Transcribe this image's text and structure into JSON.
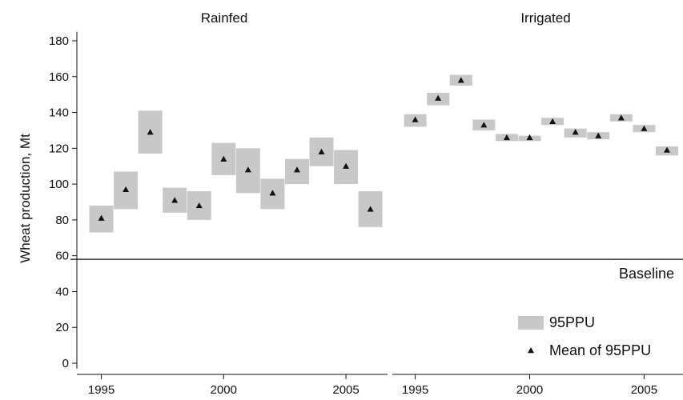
{
  "chart_data": {
    "type": "scatter",
    "ylabel": "Wheat production, Mt",
    "ylim": [
      -3,
      185
    ],
    "yticks": [
      0,
      20,
      40,
      60,
      80,
      100,
      120,
      140,
      160,
      180
    ],
    "xticks": [
      1995,
      2000,
      2005
    ],
    "baseline": {
      "label": "Baseline",
      "value": 58
    },
    "legend": {
      "band_label": "95PPU",
      "mean_label": "Mean of 95PPU",
      "position": "bottom-right"
    },
    "colors": {
      "band": "#c8c8c8",
      "marker": "#111111",
      "axis": "#111111"
    },
    "panels": [
      {
        "title": "Rainfed",
        "xlim": [
          1994,
          2006.7
        ],
        "points": [
          {
            "year": 1995,
            "mean": 81,
            "low": 73,
            "high": 88
          },
          {
            "year": 1996,
            "mean": 97,
            "low": 86,
            "high": 107
          },
          {
            "year": 1997,
            "mean": 129,
            "low": 117,
            "high": 141
          },
          {
            "year": 1998,
            "mean": 91,
            "low": 84,
            "high": 98
          },
          {
            "year": 1999,
            "mean": 88,
            "low": 80,
            "high": 96
          },
          {
            "year": 2000,
            "mean": 114,
            "low": 105,
            "high": 123
          },
          {
            "year": 2001,
            "mean": 108,
            "low": 95,
            "high": 120
          },
          {
            "year": 2002,
            "mean": 95,
            "low": 86,
            "high": 103
          },
          {
            "year": 2003,
            "mean": 108,
            "low": 100,
            "high": 114
          },
          {
            "year": 2004,
            "mean": 118,
            "low": 110,
            "high": 126
          },
          {
            "year": 2005,
            "mean": 110,
            "low": 100,
            "high": 119
          },
          {
            "year": 2006,
            "mean": 86,
            "low": 76,
            "high": 96
          }
        ]
      },
      {
        "title": "Irrigated",
        "xlim": [
          1994,
          2006.7
        ],
        "points": [
          {
            "year": 1995,
            "mean": 136,
            "low": 132,
            "high": 139
          },
          {
            "year": 1996,
            "mean": 148,
            "low": 144,
            "high": 151
          },
          {
            "year": 1997,
            "mean": 158,
            "low": 155,
            "high": 161
          },
          {
            "year": 1998,
            "mean": 133,
            "low": 130,
            "high": 136
          },
          {
            "year": 1999,
            "mean": 126,
            "low": 124,
            "high": 128
          },
          {
            "year": 2000,
            "mean": 126,
            "low": 124,
            "high": 127
          },
          {
            "year": 2001,
            "mean": 135,
            "low": 133,
            "high": 137
          },
          {
            "year": 2002,
            "mean": 129,
            "low": 126,
            "high": 131
          },
          {
            "year": 2003,
            "mean": 127,
            "low": 125,
            "high": 129
          },
          {
            "year": 2004,
            "mean": 137,
            "low": 135,
            "high": 139
          },
          {
            "year": 2005,
            "mean": 131,
            "low": 129,
            "high": 133
          },
          {
            "year": 2006,
            "mean": 119,
            "low": 116,
            "high": 121
          }
        ]
      }
    ]
  }
}
